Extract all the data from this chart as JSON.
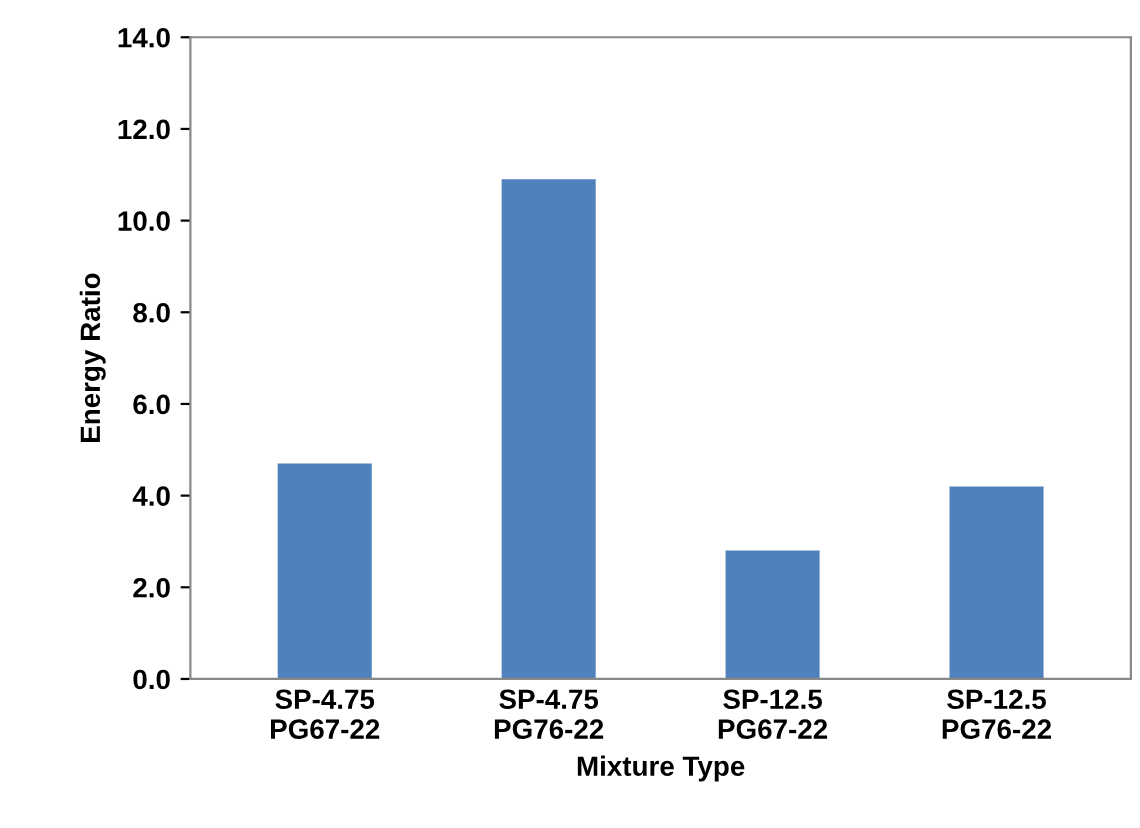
{
  "chart_data": {
    "type": "bar",
    "xlabel": "Mixture Type",
    "ylabel": "Energy Ratio",
    "categories": [
      "SP-4.75\nPG67-22",
      "SP-4.75\nPG76-22",
      "SP-12.5\nPG67-22",
      "SP-12.5\nPG76-22"
    ],
    "values": [
      4.7,
      10.9,
      2.8,
      4.2
    ],
    "color": "#4f81bd",
    "ylim": [
      0,
      14
    ],
    "yticks": [
      {
        "value": 0,
        "label": "0.0"
      },
      {
        "value": 2,
        "label": "2.0"
      },
      {
        "value": 4,
        "label": "4.0"
      },
      {
        "value": 6,
        "label": "6.0"
      },
      {
        "value": 8,
        "label": "8.0"
      },
      {
        "value": 10,
        "label": "10.0"
      },
      {
        "value": 12,
        "label": "12.0"
      },
      {
        "value": 14,
        "label": "14.0"
      }
    ],
    "grid": false,
    "legend": false
  }
}
